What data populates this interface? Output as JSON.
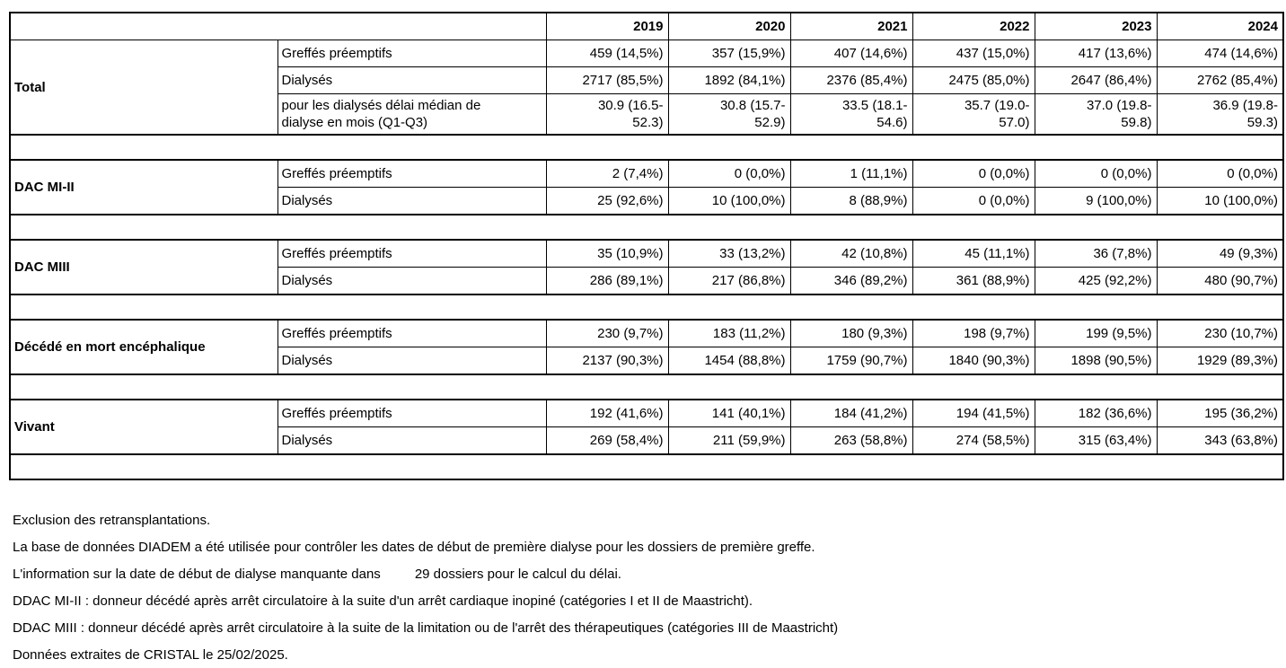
{
  "table": {
    "years": [
      "2019",
      "2020",
      "2021",
      "2022",
      "2023",
      "2024"
    ],
    "sections": [
      {
        "category": "Total",
        "rows": [
          {
            "label": "Greffés préemptifs",
            "tall": false,
            "values": [
              "459 (14,5%)",
              "357 (15,9%)",
              "407 (14,6%)",
              "437 (15,0%)",
              "417 (13,6%)",
              "474 (14,6%)"
            ]
          },
          {
            "label": "Dialysés",
            "tall": false,
            "values": [
              "2717 (85,5%)",
              "1892 (84,1%)",
              "2376 (85,4%)",
              "2475 (85,0%)",
              "2647 (86,4%)",
              "2762 (85,4%)"
            ]
          },
          {
            "label": "pour les dialysés délai médian de\ndialyse en mois (Q1-Q3)",
            "tall": true,
            "values": [
              "30.9 (16.5-\n52.3)",
              "30.8 (15.7-\n52.9)",
              "33.5 (18.1-\n54.6)",
              "35.7 (19.0-\n57.0)",
              "37.0 (19.8-\n59.8)",
              "36.9 (19.8-\n59.3)"
            ]
          }
        ]
      },
      {
        "category": "DAC MI-II",
        "rows": [
          {
            "label": "Greffés préemptifs",
            "tall": false,
            "values": [
              "2 (7,4%)",
              "0 (0,0%)",
              "1 (11,1%)",
              "0 (0,0%)",
              "0 (0,0%)",
              "0 (0,0%)"
            ]
          },
          {
            "label": "Dialysés",
            "tall": false,
            "values": [
              "25 (92,6%)",
              "10 (100,0%)",
              "8 (88,9%)",
              "0 (0,0%)",
              "9 (100,0%)",
              "10 (100,0%)"
            ]
          }
        ]
      },
      {
        "category": "DAC MIII",
        "rows": [
          {
            "label": "Greffés préemptifs",
            "tall": false,
            "values": [
              "35 (10,9%)",
              "33 (13,2%)",
              "42 (10,8%)",
              "45 (11,1%)",
              "36 (7,8%)",
              "49 (9,3%)"
            ]
          },
          {
            "label": "Dialysés",
            "tall": false,
            "values": [
              "286 (89,1%)",
              "217 (86,8%)",
              "346 (89,2%)",
              "361 (88,9%)",
              "425 (92,2%)",
              "480 (90,7%)"
            ]
          }
        ]
      },
      {
        "category": "Décédé en mort encéphalique",
        "rows": [
          {
            "label": "Greffés préemptifs",
            "tall": false,
            "values": [
              "230 (9,7%)",
              "183 (11,2%)",
              "180 (9,3%)",
              "198 (9,7%)",
              "199 (9,5%)",
              "230 (10,7%)"
            ]
          },
          {
            "label": "Dialysés",
            "tall": false,
            "values": [
              "2137 (90,3%)",
              "1454 (88,8%)",
              "1759 (90,7%)",
              "1840 (90,3%)",
              "1898 (90,5%)",
              "1929 (89,3%)"
            ]
          }
        ]
      },
      {
        "category": "Vivant",
        "rows": [
          {
            "label": "Greffés préemptifs",
            "tall": false,
            "values": [
              "192 (41,6%)",
              "141 (40,1%)",
              "184 (41,2%)",
              "194 (41,5%)",
              "182 (36,6%)",
              "195 (36,2%)"
            ]
          },
          {
            "label": "Dialysés",
            "tall": false,
            "values": [
              "269 (58,4%)",
              "211 (59,9%)",
              "263 (58,8%)",
              "274 (58,5%)",
              "315 (63,4%)",
              "343 (63,8%)"
            ]
          }
        ]
      }
    ]
  },
  "notes": {
    "line1": "Exclusion des retransplantations.",
    "line2": "La base de données DIADEM a été utilisée pour contrôler les dates de début de première dialyse pour les dossiers de première greffe.",
    "line3_part1": "L'information sur la date de début de dialyse manquante dans",
    "line3_part2": "29 dossiers pour le calcul du délai.",
    "line4": "DDAC MI-II : donneur décédé après arrêt circulatoire à la suite d'un arrêt cardiaque inopiné (catégories I et II de Maastricht).",
    "line5": "DDAC MIII : donneur décédé après arrêt circulatoire à la suite de la limitation ou de l'arrêt des thérapeutiques (catégories III de Maastricht)",
    "line6": "Données extraites de CRISTAL le 25/02/2025."
  }
}
